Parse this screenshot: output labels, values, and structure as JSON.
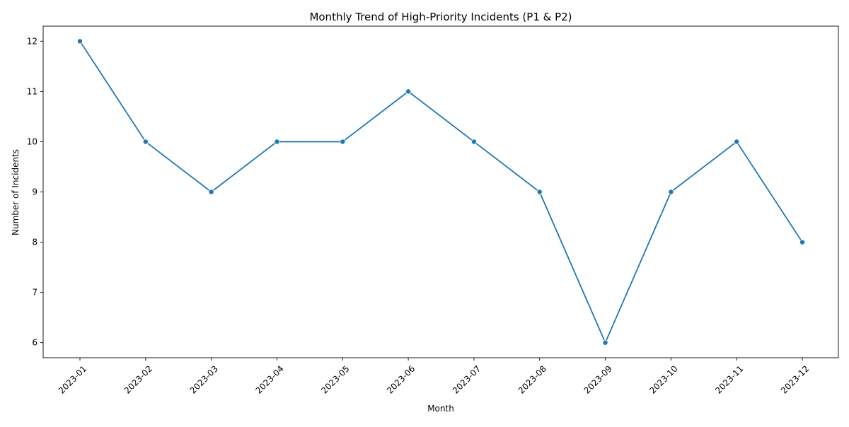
{
  "chart_data": {
    "type": "line",
    "title": "Monthly Trend of High-Priority Incidents (P1 & P2)",
    "xlabel": "Month",
    "ylabel": "Number of Incidents",
    "categories": [
      "2023-01",
      "2023-02",
      "2023-03",
      "2023-04",
      "2023-05",
      "2023-06",
      "2023-07",
      "2023-08",
      "2023-09",
      "2023-10",
      "2023-11",
      "2023-12"
    ],
    "series": [
      {
        "values": [
          12,
          10,
          9,
          10,
          10,
          11,
          10,
          9,
          6,
          9,
          10,
          8
        ],
        "color": "#1f77b4",
        "marker": "circle"
      }
    ],
    "yticks": [
      6,
      7,
      8,
      9,
      10,
      11,
      12
    ],
    "ylim": [
      5.7,
      12.3
    ],
    "grid": false,
    "legend": "none",
    "x_tick_rotation_deg": 45
  }
}
